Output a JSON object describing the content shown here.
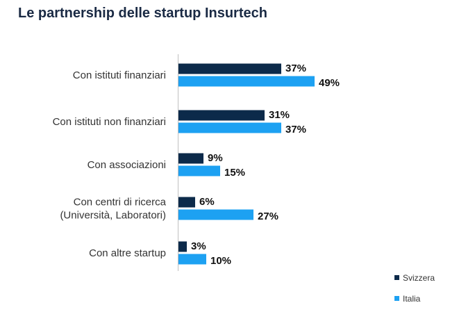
{
  "chart_data": {
    "type": "bar",
    "orientation": "horizontal",
    "title": "Le partnership delle startup Insurtech",
    "categories": [
      [
        "Con istituti finanziari"
      ],
      [
        "Con istituti non finanziari"
      ],
      [
        "Con associazioni"
      ],
      [
        "Con centri di ricerca",
        "(Università, Laboratori)"
      ],
      [
        "Con altre startup"
      ]
    ],
    "series": [
      {
        "name": "Svizzera",
        "color": "#0c2a4a",
        "values": [
          37,
          31,
          9,
          6,
          3
        ],
        "labels": [
          "37%",
          "31%",
          "9%",
          "6%",
          "3%"
        ]
      },
      {
        "name": "Italia",
        "color": "#1da1f2",
        "values": [
          49,
          37,
          15,
          27,
          10
        ],
        "labels": [
          "49%",
          "37%",
          "15%",
          "27%",
          "10%"
        ]
      }
    ],
    "xlim": [
      0,
      50
    ],
    "grid": false,
    "legend_position": "bottom-right"
  }
}
